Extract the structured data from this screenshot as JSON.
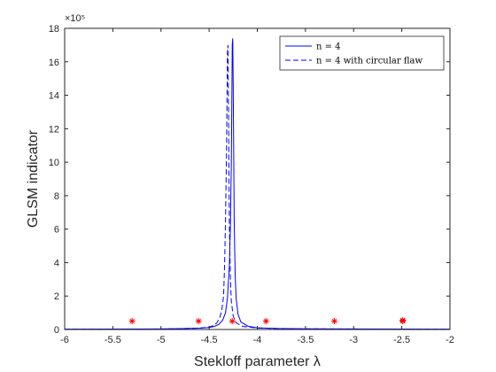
{
  "chart_data": {
    "type": "line",
    "xlabel": "Stekloff parameter λ",
    "ylabel": "GLSM indicator",
    "y_exponent_label": "×10⁵",
    "y_scale_factor": 100000,
    "xlim": [
      -6,
      -2
    ],
    "ylim": [
      0,
      1800000
    ],
    "xticks": [
      -6,
      -5.5,
      -5,
      -4.5,
      -4,
      -3.5,
      -3,
      -2.5,
      -2
    ],
    "xtick_labels": [
      "-6",
      "-5.5",
      "-5",
      "-4.5",
      "-4",
      "-3.5",
      "-3",
      "-2.5",
      "-2"
    ],
    "yticks": [
      0,
      200000,
      400000,
      600000,
      800000,
      1000000,
      1200000,
      1400000,
      1600000,
      1800000
    ],
    "ytick_labels": [
      "0",
      "2",
      "4",
      "6",
      "8",
      "10",
      "12",
      "14",
      "16",
      "18"
    ],
    "grid": false,
    "legend_position": "top-right",
    "series": [
      {
        "name": "n = 4",
        "style": "solid",
        "color": "#0000ff",
        "x": [
          -6,
          -5,
          -4.8,
          -4.6,
          -4.5,
          -4.45,
          -4.4,
          -4.36,
          -4.33,
          -4.31,
          -4.29,
          -4.28,
          -4.27,
          -4.265,
          -4.26,
          -4.255,
          -4.25,
          -4.245,
          -4.24,
          -4.23,
          -4.22,
          -4.2,
          -4.17,
          -4.1,
          -4.0,
          -3.8,
          -3.5,
          -3,
          -2
        ],
        "y": [
          2000,
          3000,
          5000,
          8000,
          12000,
          18000,
          30000,
          55000,
          100000,
          190000,
          380000,
          600000,
          980000,
          1300000,
          1700000,
          1740000,
          1450000,
          1050000,
          650000,
          330000,
          190000,
          90000,
          45000,
          20000,
          10000,
          6000,
          4000,
          3000,
          2000
        ]
      },
      {
        "name": "n = 4 with circular flaw",
        "style": "dashed",
        "color": "#0000ff",
        "x": [
          -6,
          -5,
          -4.8,
          -4.6,
          -4.5,
          -4.45,
          -4.42,
          -4.39,
          -4.37,
          -4.35,
          -4.34,
          -4.33,
          -4.32,
          -4.315,
          -4.31,
          -4.305,
          -4.3,
          -4.295,
          -4.29,
          -4.28,
          -4.27,
          -4.25,
          -4.22,
          -4.15,
          -4.0,
          -3.8,
          -3.5,
          -3,
          -2
        ],
        "y": [
          2000,
          3000,
          5000,
          8000,
          14000,
          25000,
          40000,
          70000,
          110000,
          200000,
          380000,
          650000,
          1050000,
          1350000,
          1650000,
          1700000,
          1400000,
          1000000,
          620000,
          320000,
          170000,
          80000,
          40000,
          18000,
          9000,
          6000,
          4000,
          3000,
          2000
        ]
      }
    ],
    "markers": {
      "symbol": "*",
      "color": "#ff0000",
      "points": [
        {
          "x": -5.3,
          "y": 50000
        },
        {
          "x": -4.61,
          "y": 50000
        },
        {
          "x": -4.26,
          "y": 50000
        },
        {
          "x": -3.91,
          "y": 50000
        },
        {
          "x": -3.2,
          "y": 50000
        },
        {
          "x": -2.49,
          "y": 50000
        },
        {
          "x": -2.49,
          "y": 55000
        }
      ]
    },
    "colors": {
      "axis": "#262626",
      "line": "#0000ff",
      "marker": "#ff0000",
      "legend_border": "#262626"
    }
  }
}
